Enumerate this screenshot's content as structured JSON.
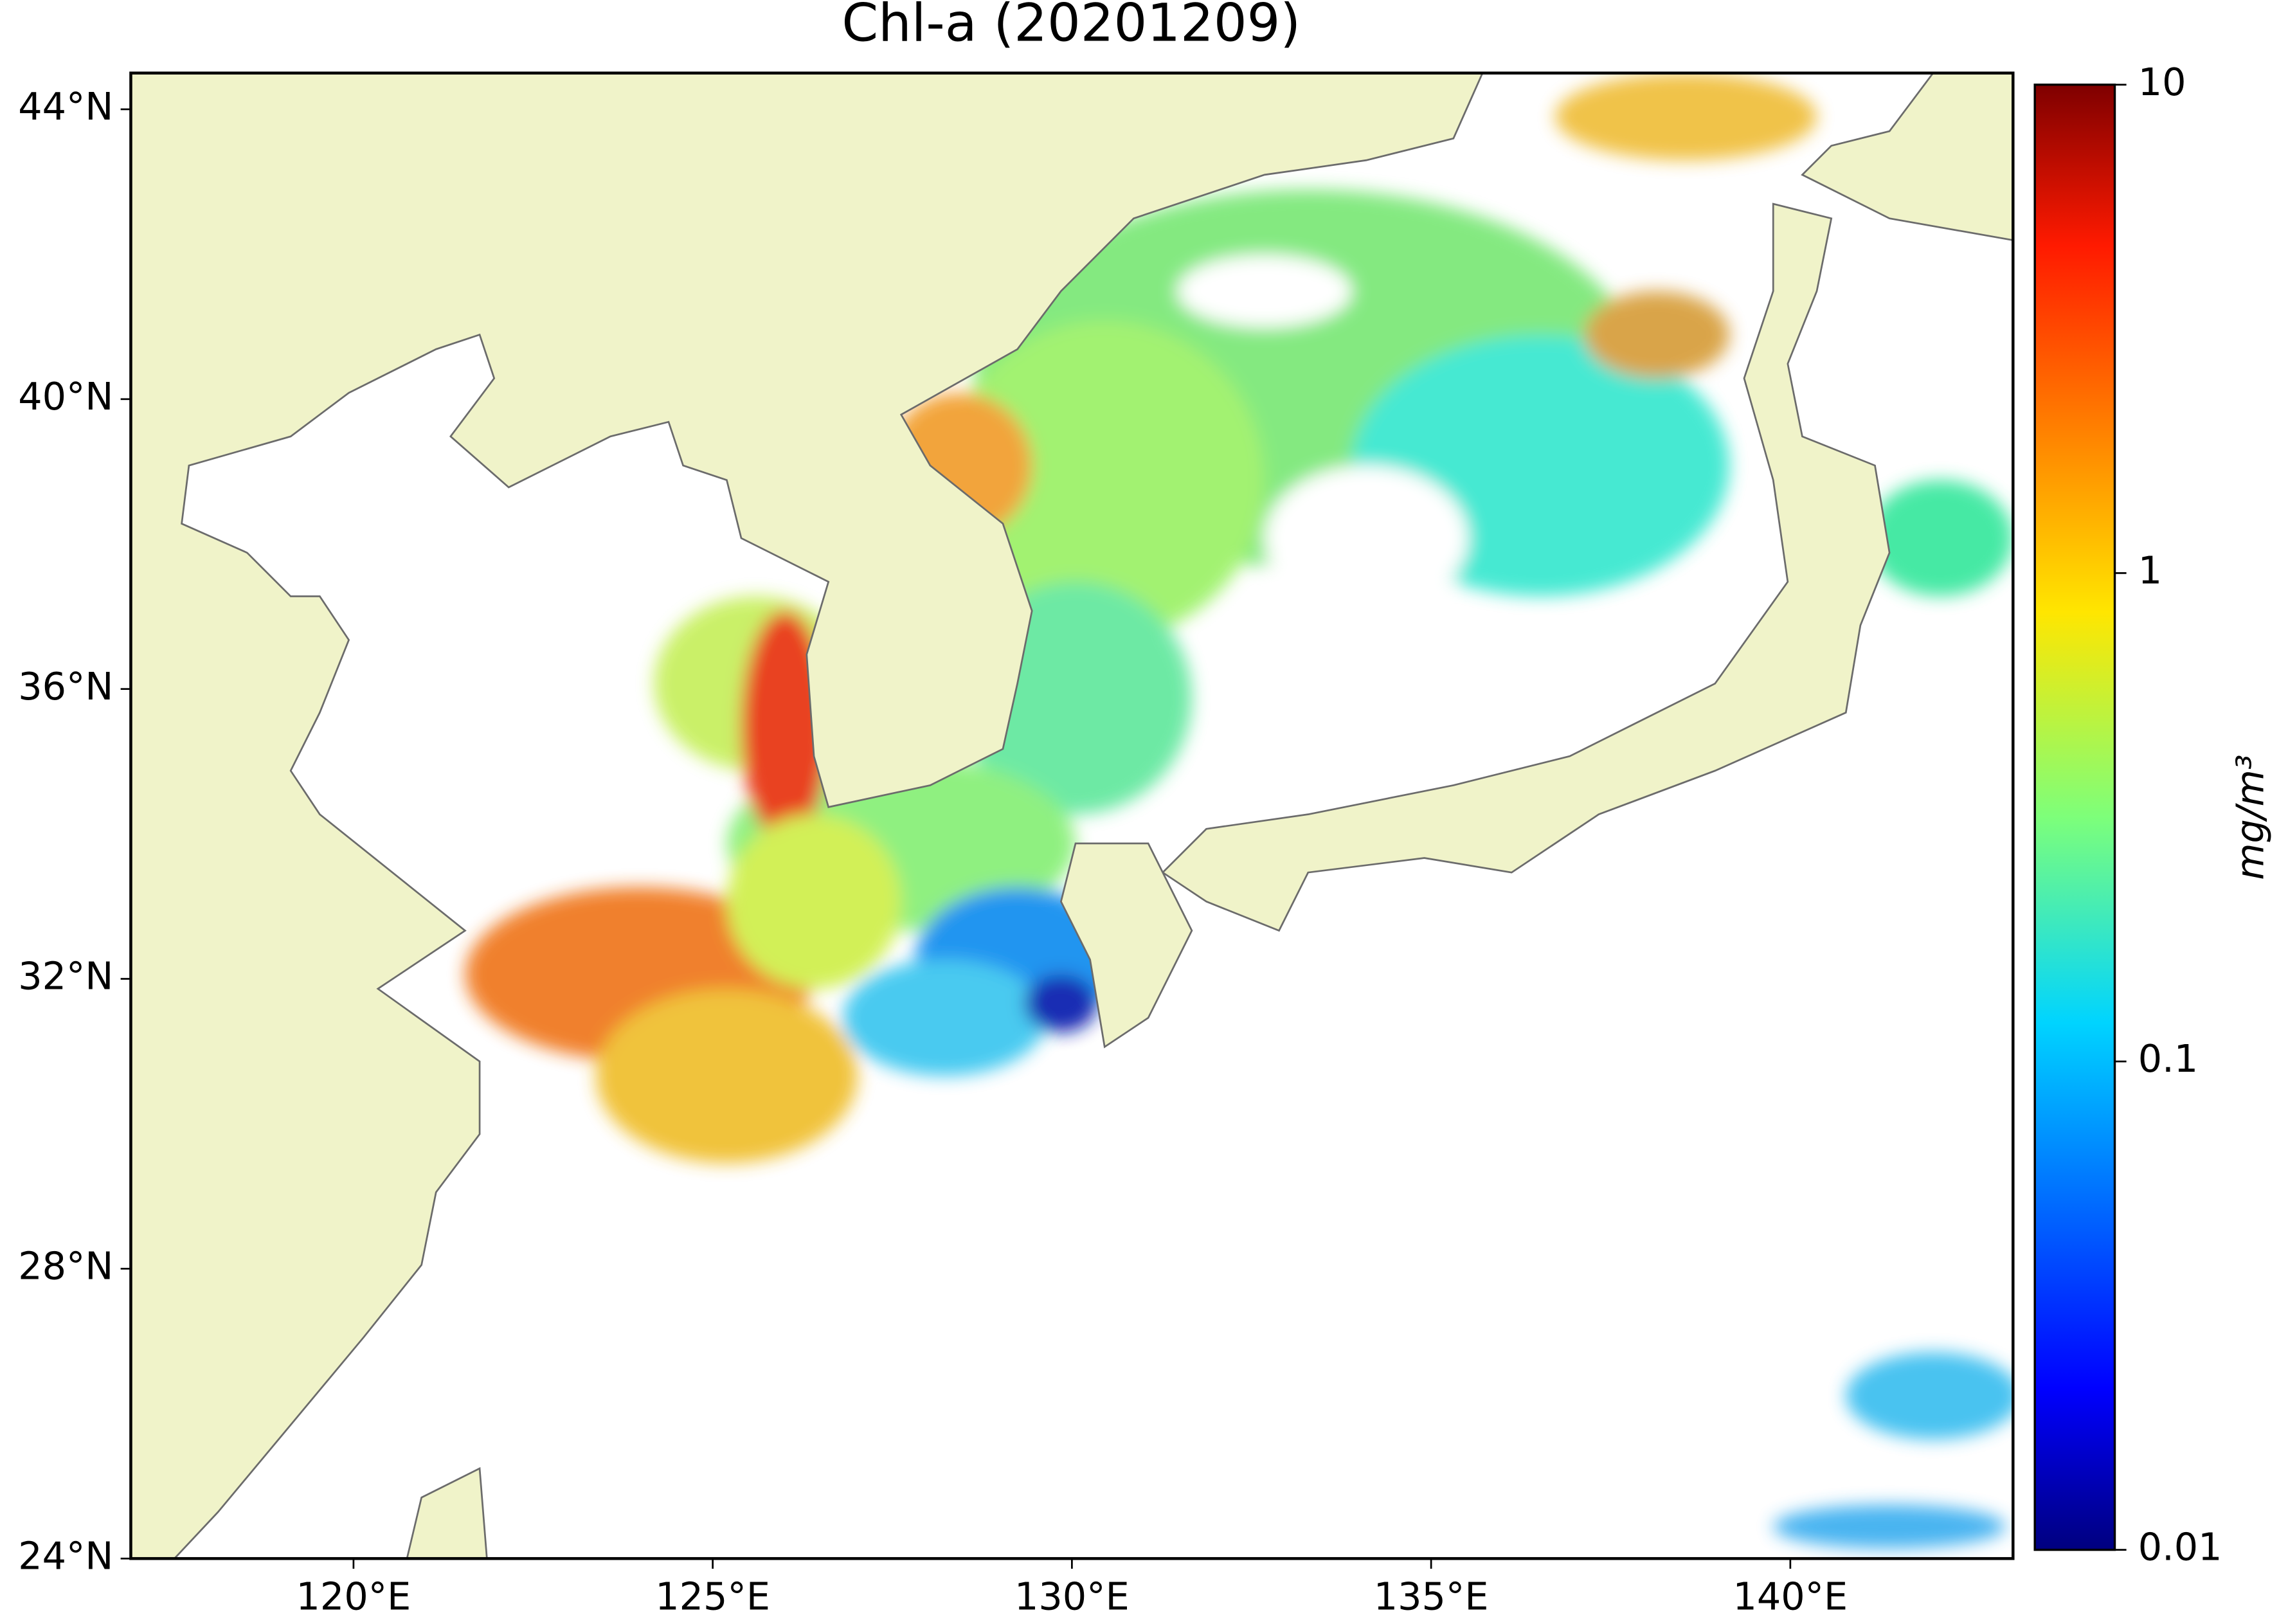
{
  "chart_data": {
    "type": "map",
    "title": "Chl-a (20201209)",
    "xlim": [
      116.9,
      143.1
    ],
    "ylim": [
      24,
      44.5
    ],
    "xticks": [
      {
        "value": 120,
        "label": "120°E"
      },
      {
        "value": 125,
        "label": "125°E"
      },
      {
        "value": 130,
        "label": "130°E"
      },
      {
        "value": 135,
        "label": "135°E"
      },
      {
        "value": 140,
        "label": "140°E"
      }
    ],
    "yticks": [
      {
        "value": 24,
        "label": "24°N"
      },
      {
        "value": 28,
        "label": "28°N"
      },
      {
        "value": 32,
        "label": "32°N"
      },
      {
        "value": 36,
        "label": "36°N"
      },
      {
        "value": 40,
        "label": "40°N"
      },
      {
        "value": 44,
        "label": "44°N"
      }
    ],
    "colorbar": {
      "label": "mg/m³",
      "log": true,
      "lim": [
        0.01,
        10
      ],
      "ticks": [
        0.01,
        0.1,
        1,
        10
      ]
    }
  }
}
